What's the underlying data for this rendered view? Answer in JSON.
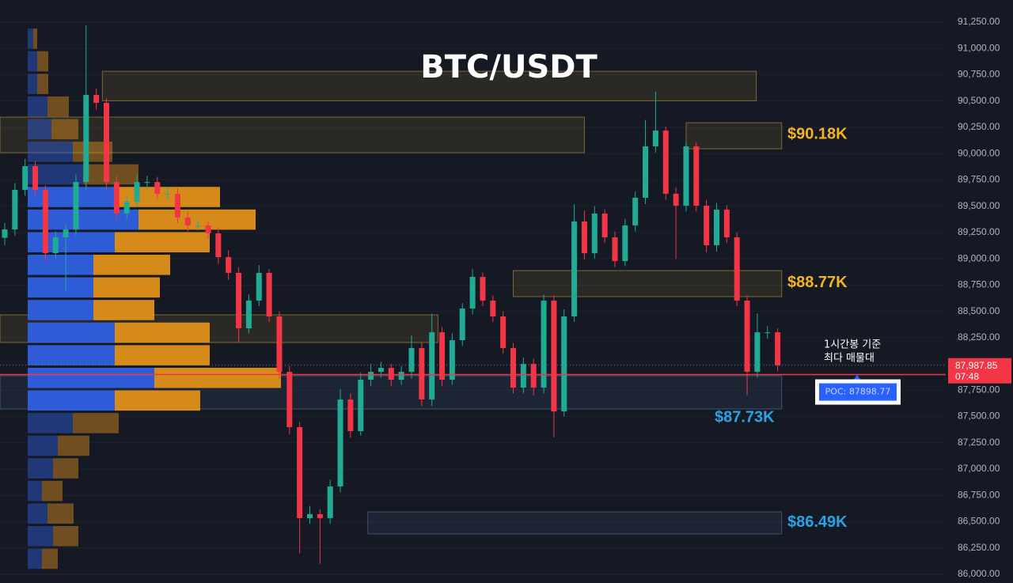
{
  "chart_data": {
    "type": "candlestick",
    "title": "BTC/USDT",
    "up_color": "#22ab94",
    "down_color": "#f23645",
    "open": [
      89200,
      89279,
      89655,
      89881,
      89655,
      89053,
      89204,
      89279,
      89730,
      90558,
      90483,
      89730,
      89430,
      89542,
      89730,
      89730,
      89618,
      89618,
      89392,
      89317,
      89317,
      89242,
      89016,
      88866,
      88339,
      88602,
      88866,
      88452,
      87925,
      87399,
      86534,
      86572,
      86534,
      86835,
      87662,
      87361,
      87850,
      87925,
      87963,
      87850,
      87925,
      88151,
      87662,
      88301,
      87850,
      88226,
      88527,
      88828,
      88602,
      88452,
      88151,
      87775,
      88000,
      87775,
      88602,
      87549,
      88452,
      89354,
      89053,
      89430,
      89204,
      88978,
      89317,
      89580,
      90069,
      90219,
      89618,
      89505,
      90069,
      89505,
      89129,
      89468,
      89204,
      88602,
      87925,
      88301,
      88301
    ],
    "high": [
      89340,
      89720,
      89950,
      89930,
      89700,
      89260,
      89340,
      89800,
      91220,
      90620,
      90530,
      89790,
      89600,
      89800,
      89790,
      89780,
      89680,
      89670,
      89450,
      89370,
      89360,
      89300,
      89080,
      88920,
      88660,
      88940,
      88900,
      88500,
      87980,
      87450,
      86650,
      86620,
      86900,
      87760,
      87720,
      87920,
      88000,
      88020,
      88000,
      87980,
      88270,
      88200,
      88480,
      88350,
      88290,
      88580,
      88900,
      88870,
      88650,
      88500,
      88200,
      88060,
      88050,
      88660,
      88650,
      88520,
      89520,
      89460,
      89500,
      89470,
      89260,
      89380,
      89640,
      90320,
      90590,
      90260,
      89680,
      90120,
      90110,
      89560,
      89530,
      89510,
      89250,
      88650,
      88480,
      88360,
      88340
    ],
    "low": [
      89130,
      89220,
      89600,
      89600,
      88980,
      89000,
      88700,
      89220,
      89650,
      90420,
      89660,
      89370,
      89380,
      89490,
      89660,
      89560,
      89560,
      89340,
      89260,
      89270,
      89190,
      88950,
      88800,
      88200,
      88290,
      88550,
      88400,
      87860,
      87330,
      86200,
      86480,
      86100,
      86480,
      86780,
      87300,
      87320,
      87790,
      87870,
      87790,
      87800,
      87860,
      87600,
      87600,
      87790,
      87800,
      88170,
      88470,
      88550,
      88400,
      88100,
      87720,
      87720,
      87700,
      87720,
      87300,
      87500,
      88400,
      88990,
      89000,
      89150,
      88920,
      88930,
      89260,
      89520,
      90010,
      89560,
      89000,
      89450,
      89450,
      89060,
      89070,
      89150,
      88550,
      87700,
      87870,
      88240,
      87930
    ],
    "close": [
      89279,
      89655,
      89881,
      89655,
      89053,
      89204,
      89279,
      89730,
      90558,
      90483,
      89730,
      89430,
      89542,
      89730,
      89730,
      89618,
      89618,
      89392,
      89317,
      89317,
      89242,
      89016,
      88866,
      88339,
      88602,
      88866,
      88452,
      87925,
      87399,
      86534,
      86572,
      86534,
      86835,
      87662,
      87361,
      87850,
      87925,
      87963,
      87850,
      87925,
      88151,
      87662,
      88301,
      87850,
      88226,
      88527,
      88828,
      88602,
      88452,
      88151,
      87775,
      88000,
      87775,
      88602,
      87549,
      88452,
      89354,
      89053,
      89430,
      89204,
      88978,
      89317,
      89580,
      90069,
      90219,
      89618,
      89505,
      90069,
      89505,
      89129,
      89468,
      89204,
      88602,
      87925,
      88301,
      88301,
      87987.85
    ],
    "ylim": [
      86000,
      91250
    ],
    "yticks": [
      {
        "value": 86000,
        "label": "86,000.00"
      },
      {
        "value": 86250,
        "label": "86,250.00"
      },
      {
        "value": 86500,
        "label": "86,500.00"
      },
      {
        "value": 86750,
        "label": "86,750.00"
      },
      {
        "value": 87000,
        "label": "87,000.00"
      },
      {
        "value": 87250,
        "label": "87,250.00"
      },
      {
        "value": 87500,
        "label": "87,500.00"
      },
      {
        "value": 87750,
        "label": "87,750.00"
      },
      {
        "value": 88000,
        "label": "88,000.00"
      },
      {
        "value": 88250,
        "label": "88,250.00"
      },
      {
        "value": 88500,
        "label": "88,500.00"
      },
      {
        "value": 88750,
        "label": "88,750.00"
      },
      {
        "value": 89000,
        "label": "89,000.00"
      },
      {
        "value": 89250,
        "label": "89,250.00"
      },
      {
        "value": 89500,
        "label": "89,500.00"
      },
      {
        "value": 89750,
        "label": "89,750.00"
      },
      {
        "value": 90000,
        "label": "90,000.00"
      },
      {
        "value": 90250,
        "label": "90,250.00"
      },
      {
        "value": 90500,
        "label": "90,500.00"
      },
      {
        "value": 90750,
        "label": "90,750.00"
      },
      {
        "value": 91000,
        "label": "91,000.00"
      },
      {
        "value": 91250,
        "label": "91,250.00"
      }
    ],
    "grid": true,
    "current_price": {
      "value": 87987.85,
      "label": "87,987.85",
      "countdown": "07:48",
      "color": "#f23645"
    },
    "poc": {
      "value": 87898.77,
      "label": "POC: 87898.77",
      "color": "#f23645"
    },
    "levels": [
      {
        "value": 90180,
        "label": "$90.18K",
        "color": "#f5b324"
      },
      {
        "value": 88770,
        "label": "$88.77K",
        "color": "#f5b324"
      },
      {
        "value": 87730,
        "label": "$87.73K",
        "color": "#29a3e6"
      },
      {
        "value": 86490,
        "label": "$86.49K",
        "color": "#29a3e6"
      }
    ],
    "zones": [
      {
        "top": 90783,
        "bottom": 90503,
        "start": 9.6,
        "end": 73.9,
        "color": "#c9a63a"
      },
      {
        "top": 90347,
        "bottom": 90009,
        "start": -0.5,
        "end": 57,
        "color": "#c9a63a"
      },
      {
        "top": 90294,
        "bottom": 90046,
        "start": 67,
        "end": 76.4,
        "color": "#c9a63a"
      },
      {
        "top": 88888,
        "bottom": 88640,
        "start": 50,
        "end": 76.4,
        "color": "#c9a63a"
      },
      {
        "top": 88467,
        "bottom": 88204,
        "start": -0.5,
        "end": 42.6,
        "color": "#c9a63a"
      },
      {
        "top": 87888,
        "bottom": 87572,
        "start": -0.5,
        "end": 76.4,
        "color": "#5b7fa6"
      },
      {
        "top": 86594,
        "bottom": 86384,
        "start": 35.7,
        "end": 76.4,
        "color": "#5b7fa6"
      }
    ],
    "note": [
      "1시간봉 기준",
      "최다 매물대"
    ],
    "volume_profile": {
      "bins": [
        86040,
        86255,
        86470,
        86685,
        86900,
        87115,
        87330,
        87545,
        87760,
        87975,
        88190,
        88405,
        88620,
        88835,
        89050,
        89265,
        89480,
        89695,
        89910,
        90125,
        90340,
        90555,
        90770,
        90985,
        91200
      ],
      "buy": [
        18,
        32,
        25,
        18,
        32,
        38,
        57,
        110,
        160,
        110,
        110,
        83,
        83,
        83,
        110,
        140,
        115,
        70,
        57,
        30,
        25,
        12,
        12,
        7
      ],
      "sell": [
        20,
        32,
        33,
        26,
        32,
        40,
        58,
        108,
        160,
        120,
        120,
        77,
        84,
        97,
        120,
        148,
        128,
        70,
        50,
        34,
        27,
        14,
        14,
        5
      ],
      "buy_color": "#2f5fe0",
      "sell_color": "#e0901a",
      "value_area": [
        87545,
        89695
      ]
    }
  }
}
